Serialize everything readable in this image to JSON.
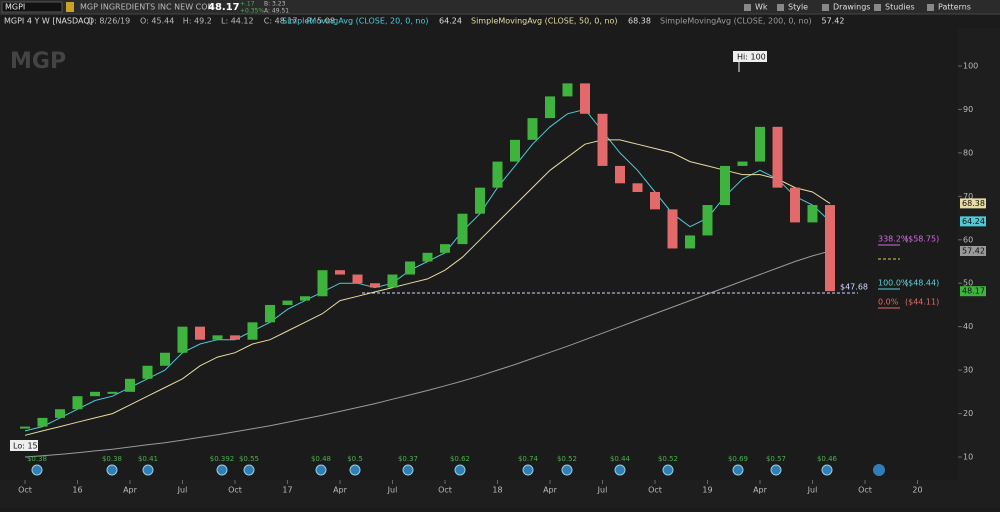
{
  "toolbar": {
    "symbol": "MGPI",
    "company": "MGP INGREDIENTS INC NEW COM",
    "last": "48.17",
    "change": "+.17",
    "change_pct": "+0.35%",
    "bid": "B: 3.23",
    "ask": "A: 49.51",
    "menu": [
      "Wk",
      "Style",
      "Drawings",
      "Studies",
      "Patterns"
    ]
  },
  "info": {
    "title": "MGPI 4 Y W [NASDAQ]",
    "fields": [
      "D: 8/26/19",
      "O: 45.44",
      "H: 49.2",
      "L: 44.12",
      "C: 48.17",
      "R: 5.08"
    ]
  },
  "watermark": "MGP",
  "chart": {
    "closes": [
      17,
      19,
      21,
      24,
      25,
      25,
      28,
      31,
      34,
      40,
      37,
      38,
      37,
      41,
      45,
      46,
      47,
      53,
      52,
      50,
      49,
      52,
      55,
      57,
      59,
      66,
      72,
      78,
      83,
      88,
      93,
      96,
      89,
      77,
      73,
      71,
      67,
      58,
      61,
      68,
      77,
      78,
      86,
      72,
      64,
      68,
      48.17
    ],
    "studies": [
      {
        "label": "SimpleMovingAvg (CLOSE, 20, 0, no)",
        "value": 64.24,
        "value_label": "64.24",
        "color": "#4fc9d6",
        "values": [
          16,
          17,
          19,
          21,
          23,
          24,
          26,
          28,
          30,
          34,
          36,
          37,
          37,
          39,
          41,
          44,
          46,
          48,
          50,
          50,
          49,
          50,
          53,
          55,
          57,
          62,
          66,
          72,
          77,
          82,
          86,
          89,
          90,
          85,
          80,
          76,
          71,
          66,
          63,
          65,
          70,
          74,
          76,
          74,
          70,
          68,
          64.24
        ]
      },
      {
        "label": "SimpleMovingAvg (CLOSE, 50, 0, no)",
        "value": 68.38,
        "value_label": "68.38",
        "color": "#e6dba0",
        "values": [
          15,
          16,
          17,
          18,
          19,
          20,
          22,
          24,
          26,
          28,
          31,
          33,
          34,
          36,
          37,
          39,
          41,
          43,
          46,
          47,
          48,
          49,
          50,
          51,
          53,
          56,
          60,
          64,
          68,
          72,
          76,
          79,
          82,
          83,
          83,
          82,
          81,
          80,
          78,
          77,
          76,
          75,
          75,
          74,
          72,
          71,
          68.38
        ]
      },
      {
        "label": "SimpleMovingAvg (CLOSE, 200, 0, no)",
        "value": 57.42,
        "value_label": "57.42",
        "color": "#9a9a9a",
        "values": [
          10,
          10.3,
          10.6,
          11,
          11.4,
          11.8,
          12.3,
          12.8,
          13.3,
          13.9,
          14.5,
          15.1,
          15.8,
          16.5,
          17.2,
          18,
          18.8,
          19.6,
          20.5,
          21.4,
          22.3,
          23.3,
          24.3,
          25.3,
          26.4,
          27.5,
          28.7,
          30,
          31.3,
          32.7,
          34.1,
          35.5,
          37,
          38.5,
          40,
          41.5,
          43,
          44.5,
          46,
          47.5,
          49,
          50.5,
          52,
          53.5,
          55,
          56.3,
          57.42
        ]
      }
    ],
    "last_label": "48.17",
    "ylim": [
      10,
      100
    ],
    "yticks": [
      10,
      20,
      30,
      40,
      50,
      60,
      70,
      80,
      90,
      100
    ],
    "xlabels": [
      "Oct",
      "16",
      "Apr",
      "Jul",
      "Oct",
      "17",
      "Apr",
      "Jul",
      "Oct",
      "18",
      "Apr",
      "Jul",
      "Oct",
      "19",
      "Apr",
      "Jul",
      "Oct",
      "20"
    ],
    "annotations": {
      "hi": "Hi: 100",
      "lo": "Lo: 15",
      "price": "$47.68"
    },
    "fib": [
      {
        "pct": "338.2%",
        "price": "($58.75)",
        "color": "#d36be0"
      },
      {
        "pct": "100.0%",
        "price": "($48.44)",
        "color": "#5fd0d8"
      },
      {
        "pct": "0.0%",
        "price": "($44.11)",
        "color": "#e26a6a"
      }
    ],
    "dividends": [
      "$0.38",
      "$0.38",
      "$0.41",
      "$0.392",
      "$0.55",
      "$0.48",
      "$0.5",
      "$0.37",
      "$0.62",
      "$0.74",
      "$0.52",
      "$0.44",
      "$0.52",
      "$0.69",
      "$0.57",
      "$0.46"
    ]
  }
}
